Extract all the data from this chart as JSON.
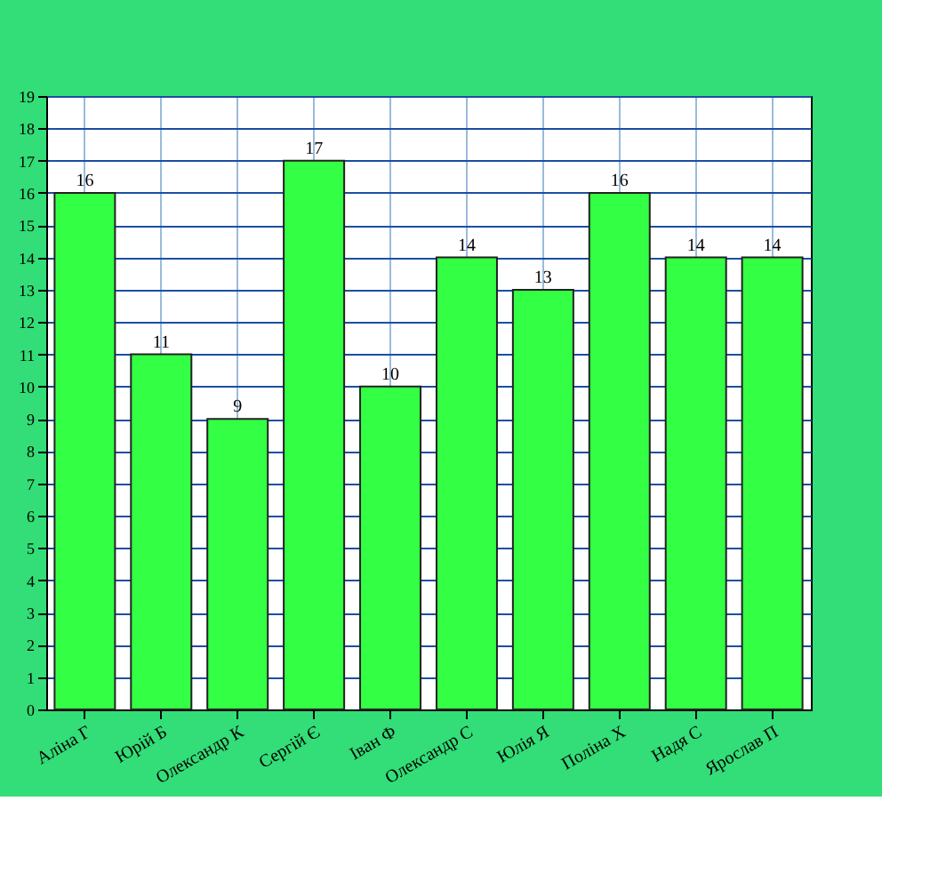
{
  "chart_data": {
    "type": "bar",
    "categories": [
      "Аліна Г",
      "Юрій Б",
      "Олександр К",
      "Сергій Є",
      "Іван Ф",
      "Олександр С",
      "Юлія Я",
      "Поліна Х",
      "Надя С",
      "Ярослав П"
    ],
    "values": [
      16,
      11,
      9,
      17,
      10,
      14,
      13,
      16,
      14,
      14
    ],
    "color": "#33ff44",
    "ylim": [
      0,
      19
    ],
    "yticks": [
      0,
      1,
      2,
      3,
      4,
      5,
      6,
      7,
      8,
      9,
      10,
      11,
      12,
      13,
      14,
      15,
      16,
      17,
      18,
      19
    ],
    "grid": true,
    "data_labels": true
  }
}
